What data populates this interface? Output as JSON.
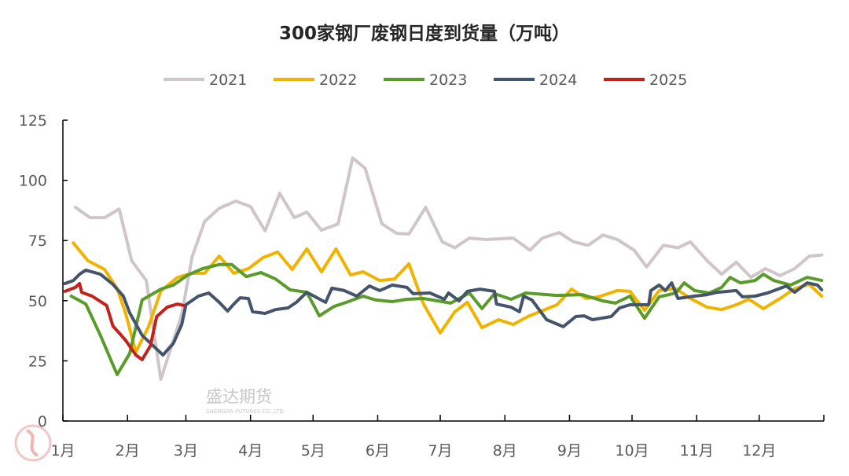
{
  "chart_data": {
    "type": "line",
    "title": "300家钢厂废钢日度到货量（万吨）",
    "xlabel": "",
    "ylabel": "",
    "ylim": [
      0,
      125
    ],
    "yticks": [
      "0",
      "25",
      "50",
      "75",
      "100",
      "125"
    ],
    "xticks": [
      "1月",
      "2月",
      "3月",
      "4月",
      "5月",
      "6月",
      "7月",
      "8月",
      "9月",
      "10月",
      "11月",
      "12月"
    ],
    "grid": false,
    "legend_position": "top",
    "series": [
      {
        "name": "2021",
        "color": "#cfc5ca",
        "points": [
          [
            "01-07",
            88.8
          ],
          [
            "01-14",
            84.5
          ],
          [
            "01-21",
            84.5
          ],
          [
            "01-28",
            88.1
          ],
          [
            "02-03",
            66.6
          ],
          [
            "02-10",
            58.4
          ],
          [
            "02-17",
            17.3
          ],
          [
            "02-27",
            44.4
          ],
          [
            "03-04",
            68.2
          ],
          [
            "03-10",
            82.9
          ],
          [
            "03-17",
            88.4
          ],
          [
            "03-25",
            91.4
          ],
          [
            "04-01",
            89.1
          ],
          [
            "04-08",
            79
          ],
          [
            "04-15",
            94.6
          ],
          [
            "04-22",
            84.5
          ],
          [
            "04-28",
            86.8
          ],
          [
            "05-05",
            79.3
          ],
          [
            "05-13",
            81.9
          ],
          [
            "05-20",
            109.3
          ],
          [
            "05-26",
            105
          ],
          [
            "06-03",
            82
          ],
          [
            "06-10",
            78
          ],
          [
            "06-16",
            77.7
          ],
          [
            "06-24",
            88.8
          ],
          [
            "07-02",
            74.4
          ],
          [
            "07-08",
            72
          ],
          [
            "07-15",
            76
          ],
          [
            "07-23",
            75.4
          ],
          [
            "08-05",
            76
          ],
          [
            "08-13",
            71
          ],
          [
            "08-19",
            76
          ],
          [
            "08-27",
            78.3
          ],
          [
            "09-03",
            74.4
          ],
          [
            "09-10",
            73
          ],
          [
            "09-17",
            77.3
          ],
          [
            "09-24",
            75.4
          ],
          [
            "10-02",
            71
          ],
          [
            "10-08",
            64
          ],
          [
            "10-16",
            73
          ],
          [
            "10-23",
            72
          ],
          [
            "10-29",
            74.4
          ],
          [
            "11-06",
            66.6
          ],
          [
            "11-13",
            61
          ],
          [
            "11-20",
            66
          ],
          [
            "11-27",
            59.7
          ],
          [
            "12-04",
            63.3
          ],
          [
            "12-11",
            60.4
          ],
          [
            "12-18",
            63.3
          ],
          [
            "12-25",
            68.5
          ],
          [
            "12-31",
            69
          ]
        ]
      },
      {
        "name": "2022",
        "color": "#f0b400",
        "points": [
          [
            "01-06",
            74
          ],
          [
            "01-13",
            66.6
          ],
          [
            "01-21",
            63
          ],
          [
            "01-27",
            55
          ],
          [
            "01-31",
            45
          ],
          [
            "02-05",
            28.7
          ],
          [
            "02-11",
            39
          ],
          [
            "02-17",
            54
          ],
          [
            "02-25",
            59.7
          ],
          [
            "03-04",
            61.4
          ],
          [
            "03-10",
            61.4
          ],
          [
            "03-17",
            68.5
          ],
          [
            "03-24",
            61.4
          ],
          [
            "03-31",
            63.3
          ],
          [
            "04-07",
            67.9
          ],
          [
            "04-14",
            70.2
          ],
          [
            "04-21",
            63
          ],
          [
            "04-28",
            71.5
          ],
          [
            "05-05",
            62
          ],
          [
            "05-12",
            71.5
          ],
          [
            "05-19",
            60.7
          ],
          [
            "05-25",
            62
          ],
          [
            "06-02",
            58.4
          ],
          [
            "06-09",
            59
          ],
          [
            "06-16",
            65.3
          ],
          [
            "06-23",
            48.6
          ],
          [
            "07-01",
            36.6
          ],
          [
            "07-08",
            45.4
          ],
          [
            "07-14",
            49.3
          ],
          [
            "07-21",
            38.8
          ],
          [
            "07-29",
            42.1
          ],
          [
            "08-05",
            40.1
          ],
          [
            "08-12",
            43.4
          ],
          [
            "08-26",
            48.3
          ],
          [
            "09-02",
            54.8
          ],
          [
            "09-09",
            50.9
          ],
          [
            "09-15",
            51.6
          ],
          [
            "09-24",
            54.2
          ],
          [
            "09-30",
            53.9
          ],
          [
            "10-07",
            46
          ],
          [
            "10-14",
            54.2
          ],
          [
            "10-22",
            55
          ],
          [
            "10-29",
            50.9
          ],
          [
            "11-06",
            47.3
          ],
          [
            "11-13",
            46.3
          ],
          [
            "11-20",
            48.3
          ],
          [
            "11-26",
            50.6
          ],
          [
            "12-03",
            46.7
          ],
          [
            "12-11",
            50.9
          ],
          [
            "12-18",
            55
          ],
          [
            "12-25",
            56.8
          ],
          [
            "12-31",
            51.9
          ]
        ]
      },
      {
        "name": "2023",
        "color": "#5b9b2b",
        "points": [
          [
            "01-05",
            51.9
          ],
          [
            "01-12",
            48.6
          ],
          [
            "01-19",
            35.6
          ],
          [
            "01-27",
            19.3
          ],
          [
            "02-02",
            28
          ],
          [
            "02-08",
            50.3
          ],
          [
            "02-17",
            54.8
          ],
          [
            "02-23",
            56.5
          ],
          [
            "03-02",
            60.7
          ],
          [
            "03-09",
            63.3
          ],
          [
            "03-17",
            65
          ],
          [
            "03-23",
            65
          ],
          [
            "03-30",
            60
          ],
          [
            "04-06",
            61.7
          ],
          [
            "04-13",
            59
          ],
          [
            "04-20",
            54.5
          ],
          [
            "04-28",
            53.5
          ],
          [
            "05-04",
            43.7
          ],
          [
            "05-11",
            47.6
          ],
          [
            "05-17",
            49.3
          ],
          [
            "05-25",
            51.9
          ],
          [
            "05-31",
            50.3
          ],
          [
            "06-08",
            49.6
          ],
          [
            "06-15",
            50.6
          ],
          [
            "06-23",
            50.9
          ],
          [
            "07-06",
            49
          ],
          [
            "07-15",
            53.2
          ],
          [
            "07-21",
            46.7
          ],
          [
            "07-27",
            52.9
          ],
          [
            "08-04",
            50.6
          ],
          [
            "08-11",
            53.2
          ],
          [
            "08-26",
            52.2
          ],
          [
            "09-07",
            52.5
          ],
          [
            "09-17",
            49.9
          ],
          [
            "09-23",
            49
          ],
          [
            "09-30",
            51.9
          ],
          [
            "10-07",
            42.7
          ],
          [
            "10-14",
            51.6
          ],
          [
            "10-22",
            53.2
          ],
          [
            "10-26",
            57.4
          ],
          [
            "10-31",
            54.2
          ],
          [
            "11-07",
            53.2
          ],
          [
            "11-13",
            55.5
          ],
          [
            "11-17",
            59.7
          ],
          [
            "11-22",
            57.4
          ],
          [
            "11-29",
            58.4
          ],
          [
            "12-03",
            61
          ],
          [
            "12-08",
            58.4
          ],
          [
            "12-16",
            56.5
          ],
          [
            "12-24",
            59.7
          ],
          [
            "12-31",
            58.4
          ]
        ]
      },
      {
        "name": "2024",
        "color": "#44546a",
        "points": [
          [
            "01-02",
            57.1
          ],
          [
            "01-06",
            58.4
          ],
          [
            "01-09",
            61
          ],
          [
            "01-12",
            62.7
          ],
          [
            "01-19",
            61
          ],
          [
            "01-25",
            56.8
          ],
          [
            "01-30",
            51.9
          ],
          [
            "02-02",
            45
          ],
          [
            "02-08",
            35.6
          ],
          [
            "02-14",
            30.7
          ],
          [
            "02-18",
            27.4
          ],
          [
            "02-23",
            32.3
          ],
          [
            "02-27",
            40.1
          ],
          [
            "03-01",
            48.3
          ],
          [
            "03-07",
            51.9
          ],
          [
            "03-12",
            53.2
          ],
          [
            "03-17",
            49.3
          ],
          [
            "03-21",
            45.7
          ],
          [
            "03-24",
            48.6
          ],
          [
            "03-27",
            51.2
          ],
          [
            "03-31",
            50.9
          ],
          [
            "04-02",
            45.4
          ],
          [
            "04-08",
            44.7
          ],
          [
            "04-13",
            46.3
          ],
          [
            "04-19",
            47
          ],
          [
            "04-23",
            49.3
          ],
          [
            "04-28",
            53.5
          ],
          [
            "05-07",
            49.3
          ],
          [
            "05-10",
            55.2
          ],
          [
            "05-16",
            54.2
          ],
          [
            "05-22",
            51.9
          ],
          [
            "05-28",
            56.1
          ],
          [
            "06-02",
            54.2
          ],
          [
            "06-08",
            56.5
          ],
          [
            "06-15",
            55.5
          ],
          [
            "06-18",
            52.9
          ],
          [
            "06-26",
            53.2
          ],
          [
            "07-03",
            50.6
          ],
          [
            "07-05",
            53.2
          ],
          [
            "07-10",
            49.9
          ],
          [
            "07-14",
            53.9
          ],
          [
            "07-20",
            54.8
          ],
          [
            "07-27",
            53.9
          ],
          [
            "07-28",
            48.6
          ],
          [
            "08-04",
            47.3
          ],
          [
            "08-08",
            45.4
          ],
          [
            "08-10",
            51.9
          ],
          [
            "08-14",
            50.3
          ],
          [
            "08-21",
            42.1
          ],
          [
            "08-29",
            39.2
          ],
          [
            "09-04",
            43.4
          ],
          [
            "09-08",
            43.7
          ],
          [
            "09-12",
            42.1
          ],
          [
            "09-21",
            43.4
          ],
          [
            "09-25",
            47
          ],
          [
            "09-30",
            48.3
          ],
          [
            "10-09",
            48.3
          ],
          [
            "10-10",
            54.2
          ],
          [
            "10-14",
            56.5
          ],
          [
            "10-17",
            54.2
          ],
          [
            "10-20",
            57.4
          ],
          [
            "10-23",
            50.9
          ],
          [
            "10-31",
            51.9
          ],
          [
            "11-06",
            52.5
          ],
          [
            "11-11",
            53.5
          ],
          [
            "11-20",
            54.2
          ],
          [
            "11-23",
            51.6
          ],
          [
            "11-29",
            51.9
          ],
          [
            "12-05",
            53.2
          ],
          [
            "12-14",
            56.1
          ],
          [
            "12-18",
            53.5
          ],
          [
            "12-24",
            57.4
          ],
          [
            "12-29",
            56.5
          ],
          [
            "12-31",
            54.5
          ]
        ]
      },
      {
        "name": "2025",
        "color": "#c3211c",
        "points": [
          [
            "01-02",
            53.9
          ],
          [
            "01-07",
            55.5
          ],
          [
            "01-09",
            57.1
          ],
          [
            "01-10",
            53.5
          ],
          [
            "01-15",
            51.9
          ],
          [
            "01-22",
            48
          ],
          [
            "01-25",
            39.5
          ],
          [
            "01-31",
            33.6
          ],
          [
            "02-05",
            27.4
          ],
          [
            "02-08",
            25.5
          ],
          [
            "02-12",
            31.3
          ],
          [
            "02-15",
            43.4
          ],
          [
            "02-20",
            47.3
          ],
          [
            "02-25",
            48.6
          ],
          [
            "02-28",
            48
          ]
        ]
      }
    ]
  },
  "watermark": {
    "cn": "盛达期货",
    "en": "SHENGDA FUTURES CO.,LTD."
  }
}
